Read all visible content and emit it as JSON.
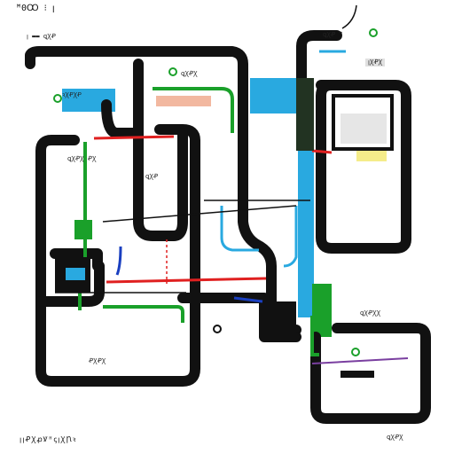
{
  "title": "ꟸ0Ꝏ ⁝ ꞁ",
  "footer": "ꞁꞁꝒꞳꝓꝞꟸꞔꞁꞳꞂꝛ",
  "labels": {
    "top_left_mark": "ꞁ ▬▬ ꝗꞳꝒ",
    "top_center_mark": "ꝗꞳꝒꞳ",
    "top_right_mark": "ꝗꞳꝒ Ꞁ",
    "right_tag": "ꞁꞳꝒꞳ",
    "center_tag": "ꝗꞳꝒ",
    "left_block": "ꝛꞳꝒꞳꝒ",
    "mid_left": "ꝗꞳꝒꞳ ꝒꞳ",
    "bottom_left": "ꝒꞳꝒꞳ",
    "bottom_right": "ꝗꞳꝒꞳꞳ",
    "bottom_mid": "ꝗꞳꝒꞳ"
  },
  "colors": {
    "track": "#111111",
    "accent_blue": "#29a9e0",
    "accent_green": "#1aa02a",
    "accent_red": "#e02020",
    "accent_navy": "#1a3fc0",
    "note_orange": "#f2b8a0",
    "note_yellow": "#f5ec8a"
  }
}
